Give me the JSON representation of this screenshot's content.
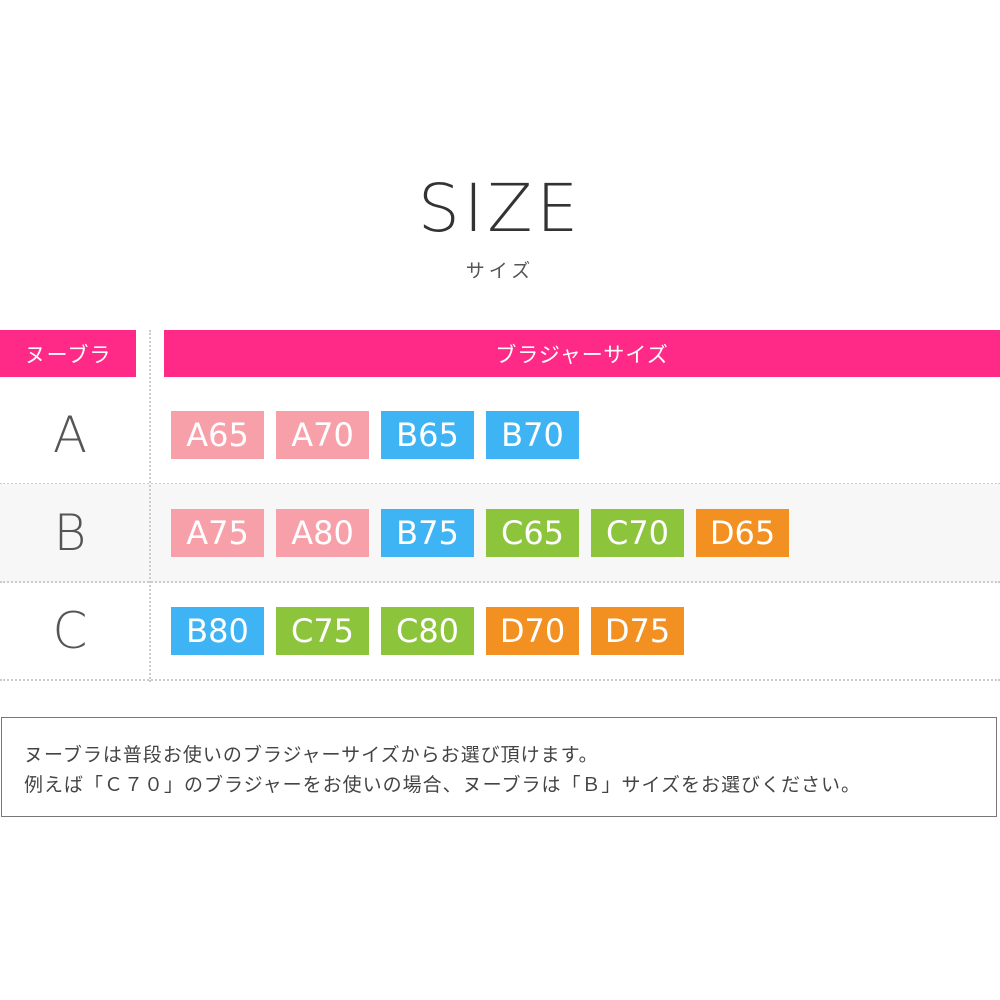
{
  "title": "SIZE",
  "subtitle": "サイズ",
  "header": {
    "left": "ヌーブラ",
    "right": "ブラジャーサイズ"
  },
  "colors": {
    "header": "#ff2a87",
    "A": "#f7a0aa",
    "B": "#3fb4f5",
    "C": "#8cc43c",
    "D": "#f39022"
  },
  "rows": [
    {
      "label": "A",
      "sizes": [
        "A65",
        "A70",
        "B65",
        "B70"
      ]
    },
    {
      "label": "B",
      "sizes": [
        "A75",
        "A80",
        "B75",
        "C65",
        "C70",
        "D65"
      ]
    },
    {
      "label": "C",
      "sizes": [
        "B80",
        "C75",
        "C80",
        "D70",
        "D75"
      ]
    }
  ],
  "note": {
    "line1": "ヌーブラは普段お使いのブラジャーサイズからお選び頂けます。",
    "line2": "例えば「Ｃ７０」のブラジャーをお使いの場合、ヌーブラは「Ｂ」サイズをお選びください。"
  }
}
